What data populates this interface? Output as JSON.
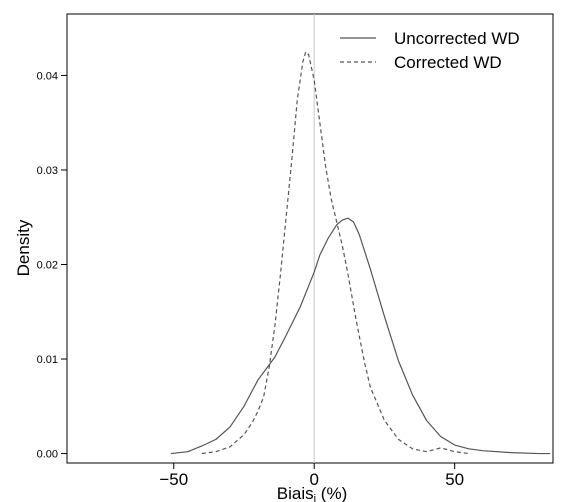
{
  "chart_data": {
    "type": "line",
    "xlabel": "Biais",
    "xlabel_subscript": "i",
    "xlabel_suffix": " (%)",
    "ylabel": "Density",
    "xlim": [
      -88,
      85
    ],
    "ylim": [
      -0.001,
      0.0465
    ],
    "x_ticks": [
      -50,
      0,
      50
    ],
    "x_tick_labels": [
      "−50",
      "0",
      "50"
    ],
    "y_ticks": [
      0.0,
      0.01,
      0.02,
      0.03,
      0.04
    ],
    "y_tick_labels": [
      "0.00",
      "0.01",
      "0.02",
      "0.03",
      "0.04"
    ],
    "reference_line_x": 0,
    "legend_position": "top-right",
    "colors": {
      "series": "#555555",
      "reference": "#c8c8c8",
      "frame": "#000000"
    },
    "series": [
      {
        "name": "Uncorrected WD",
        "style": "solid",
        "x": [
          -51,
          -45,
          -40,
          -35,
          -30,
          -25,
          -20,
          -17,
          -14,
          -10,
          -5,
          0,
          2,
          5,
          8,
          10,
          12,
          14,
          16,
          20,
          25,
          30,
          35,
          40,
          45,
          50,
          55,
          60,
          70,
          80,
          84
        ],
        "y": [
          0.0,
          0.0002,
          0.0008,
          0.0015,
          0.0028,
          0.005,
          0.0078,
          0.009,
          0.0102,
          0.0125,
          0.0155,
          0.0192,
          0.021,
          0.0228,
          0.0242,
          0.0247,
          0.0249,
          0.0245,
          0.0232,
          0.0195,
          0.0145,
          0.0098,
          0.0062,
          0.0035,
          0.0018,
          0.0009,
          0.0005,
          0.0003,
          0.0001,
          0.0,
          0.0
        ]
      },
      {
        "name": "Corrected WD",
        "style": "dashed",
        "x": [
          -40,
          -35,
          -30,
          -25,
          -22,
          -20,
          -18,
          -16,
          -14,
          -12,
          -10,
          -8,
          -6,
          -4,
          -3,
          -2,
          0,
          2,
          4,
          6,
          8,
          10,
          12,
          15,
          18,
          20,
          25,
          30,
          35,
          40,
          45,
          50,
          55
        ],
        "y": [
          0.0,
          0.0002,
          0.0007,
          0.002,
          0.0033,
          0.0045,
          0.006,
          0.0092,
          0.0135,
          0.019,
          0.025,
          0.031,
          0.0375,
          0.0415,
          0.0425,
          0.0422,
          0.0395,
          0.035,
          0.0305,
          0.027,
          0.0245,
          0.022,
          0.019,
          0.014,
          0.0095,
          0.007,
          0.0035,
          0.0015,
          0.0005,
          0.0002,
          0.0006,
          0.0002,
          0.0
        ]
      }
    ]
  }
}
